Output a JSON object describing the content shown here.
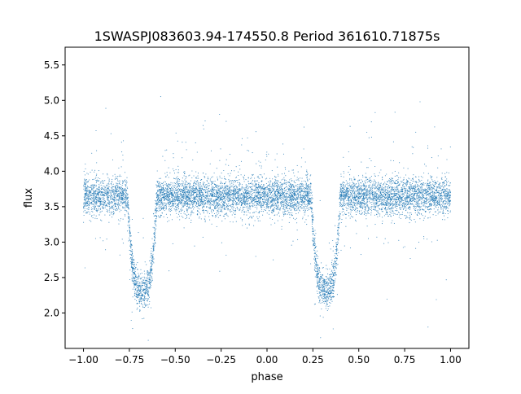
{
  "chart_data": {
    "type": "scatter",
    "title": "1SWASPJ083603.94-174550.8 Period 361610.71875s",
    "xlabel": "phase",
    "ylabel": "flux",
    "xlim": [
      -1.1,
      1.1
    ],
    "ylim": [
      1.5,
      5.75
    ],
    "xticks": [
      -1.0,
      -0.75,
      -0.5,
      -0.25,
      0.0,
      0.25,
      0.5,
      0.75,
      1.0
    ],
    "xtick_labels": [
      "−1.00",
      "−0.75",
      "−0.50",
      "−0.25",
      "0.00",
      "0.25",
      "0.50",
      "0.75",
      "1.00"
    ],
    "yticks": [
      2.0,
      2.5,
      3.0,
      3.5,
      4.0,
      4.5,
      5.0,
      5.5
    ],
    "ytick_labels": [
      "2.0",
      "2.5",
      "3.0",
      "3.5",
      "4.0",
      "4.5",
      "5.0",
      "5.5"
    ],
    "grid": false,
    "marker_color": "#1f77b4",
    "phase_range": [
      -1.0,
      1.0
    ],
    "baseline_flux": 3.65,
    "eclipse_centers": [
      -0.68,
      0.32
    ],
    "eclipse_min_flux": 2.3,
    "eclipse_half_width": 0.08,
    "approx_point_count": 30000
  }
}
